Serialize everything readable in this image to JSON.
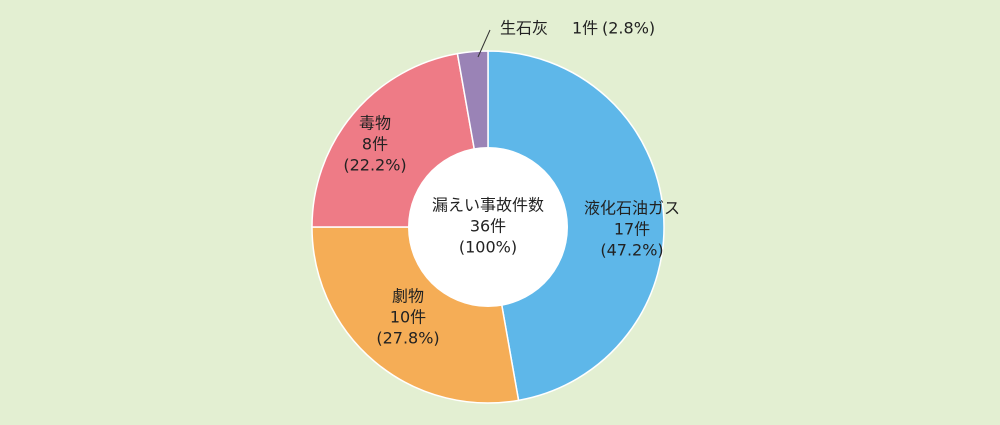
{
  "chart_data": {
    "type": "donut",
    "categories": [
      "液化石油ガス",
      "劇物",
      "毒物",
      "生石灰"
    ],
    "values": [
      17,
      10,
      8,
      1
    ],
    "value_labels": [
      "17件",
      "10件",
      "8件",
      "1件"
    ],
    "percent_labels": [
      "(47.2%)",
      "(27.8%)",
      "(22.2%)",
      "(2.8%)"
    ],
    "colors": [
      "#5eb7e9",
      "#f5ad56",
      "#ee7b86",
      "#9a83b6"
    ],
    "center_title": "漏えい事故件数",
    "total": 36,
    "total_label": "36件",
    "total_percent_label": "(100%)"
  }
}
